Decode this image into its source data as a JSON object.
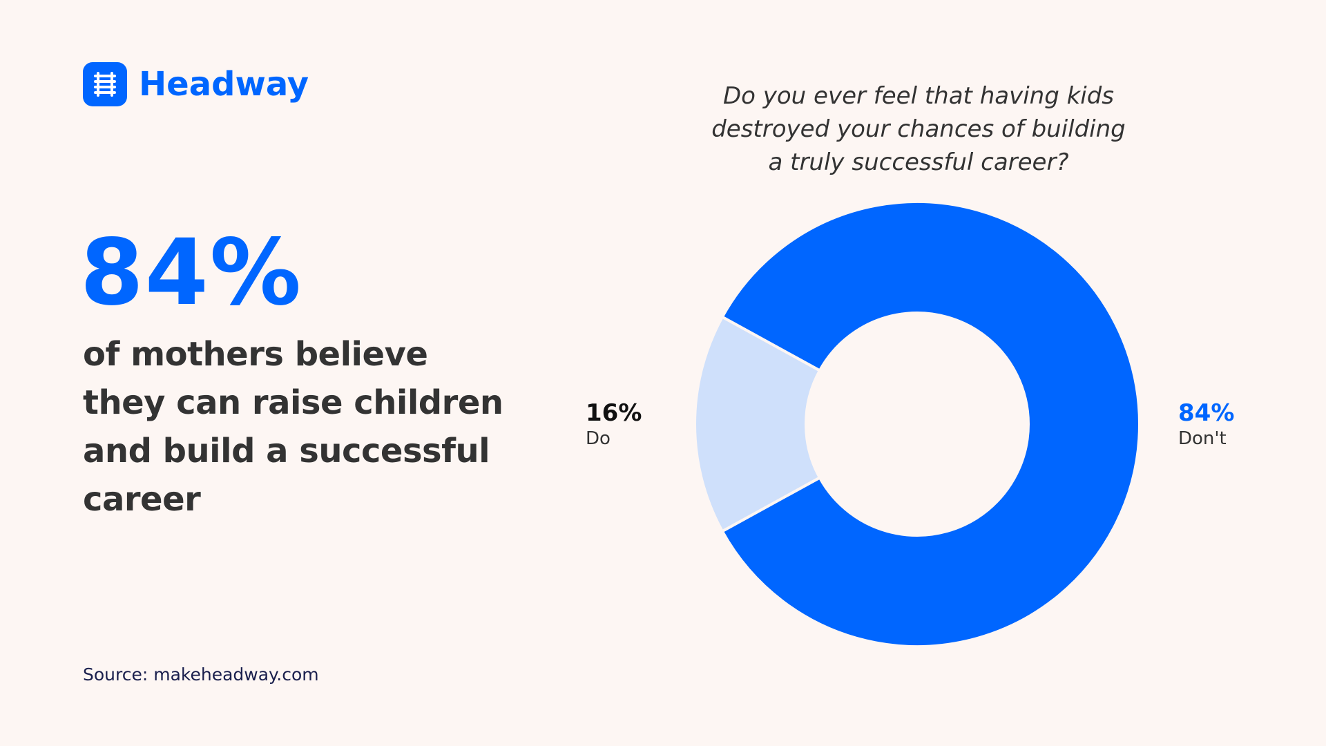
{
  "brand": {
    "name": "Headway",
    "logo_icon": "ladder-icon",
    "color": "#0066ff"
  },
  "headline": {
    "stat": "84%",
    "lines": [
      "of mothers believe",
      "they can raise children",
      "and build a successful",
      "career"
    ]
  },
  "source": "Source: makeheadway.com",
  "colors": {
    "background": "#fdf6f3",
    "accent": "#0066ff",
    "accent_light": "#cfe0fb",
    "text_dark": "#333333",
    "source_text": "#1a1f4d"
  },
  "chart_data": {
    "type": "pie",
    "variant": "donut",
    "title_lines": [
      "Do you ever feel that having kids",
      "destroyed your chances of building",
      "a truly successful career?"
    ],
    "slices": [
      {
        "label": "Don't",
        "value": 84,
        "display": "84%",
        "color": "#0066ff"
      },
      {
        "label": "Do",
        "value": 16,
        "display": "16%",
        "color": "#cfe0fb"
      }
    ]
  }
}
